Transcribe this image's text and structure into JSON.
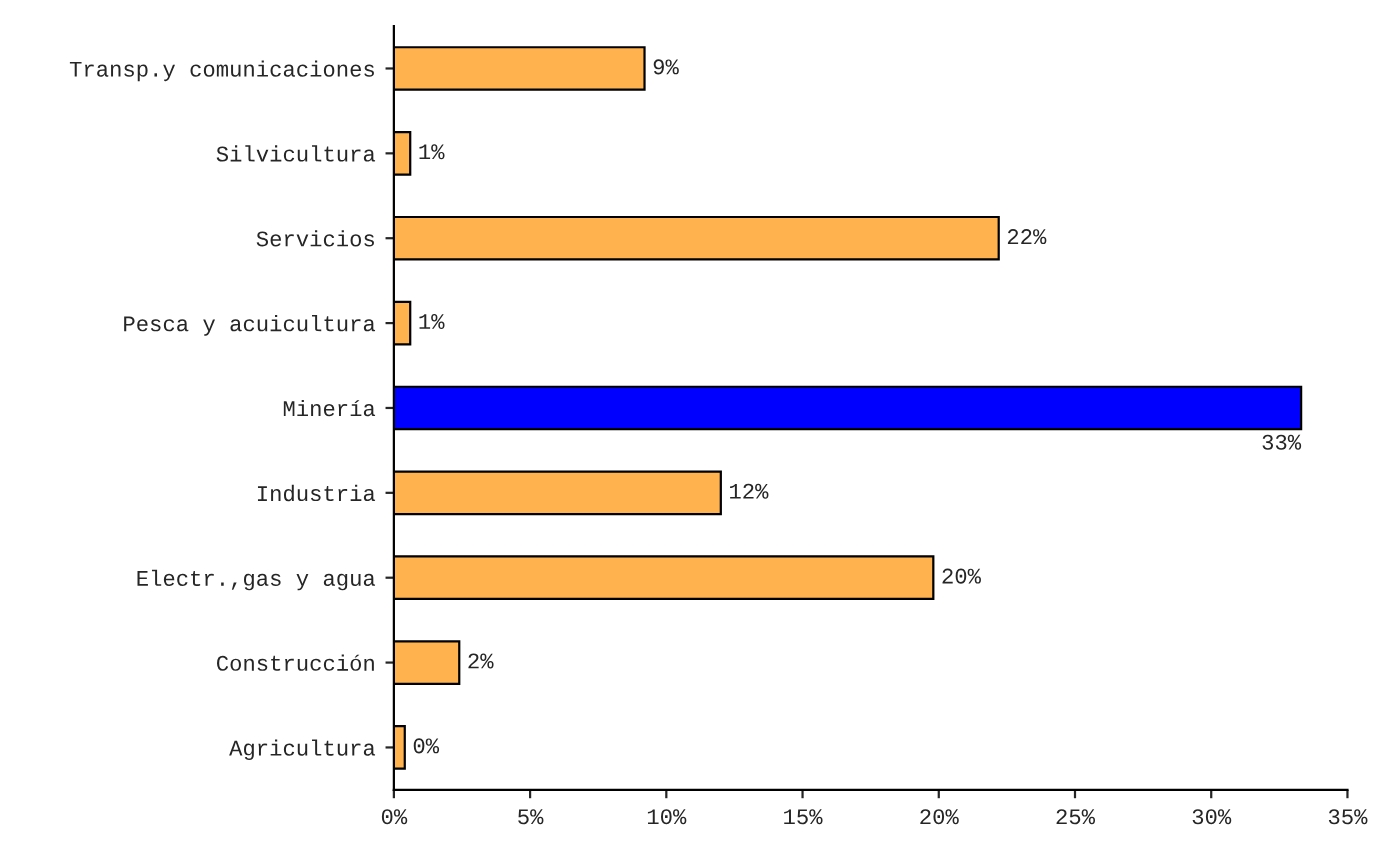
{
  "chart_data": {
    "type": "bar",
    "orientation": "horizontal",
    "categories": [
      "Transp.y comunicaciones",
      "Silvicultura",
      "Servicios",
      "Pesca y acuicultura",
      "Minería",
      "Industria",
      "Electr.,gas y agua",
      "Construcción",
      "Agricultura"
    ],
    "values": [
      9.2,
      0.6,
      22.2,
      0.6,
      33.3,
      12.0,
      19.8,
      2.4,
      0.4
    ],
    "colors": [
      "#ffb24d",
      "#ffb24d",
      "#ffb24d",
      "#ffb24d",
      "#0000ff",
      "#ffb24d",
      "#ffb24d",
      "#ffb24d",
      "#ffb24d"
    ],
    "value_labels": [
      "9%",
      "1%",
      "22%",
      "1%",
      "33%",
      "12%",
      "20%",
      "2%",
      "0%"
    ],
    "xlim": [
      0,
      35
    ],
    "xticks": [
      {
        "value": 0,
        "label": "0%"
      },
      {
        "value": 5,
        "label": "5%"
      },
      {
        "value": 10,
        "label": "10%"
      },
      {
        "value": 15,
        "label": "15%"
      },
      {
        "value": 20,
        "label": "20%"
      },
      {
        "value": 25,
        "label": "25%"
      },
      {
        "value": 30,
        "label": "30%"
      },
      {
        "value": 35,
        "label": "35%"
      }
    ],
    "grid": false
  }
}
